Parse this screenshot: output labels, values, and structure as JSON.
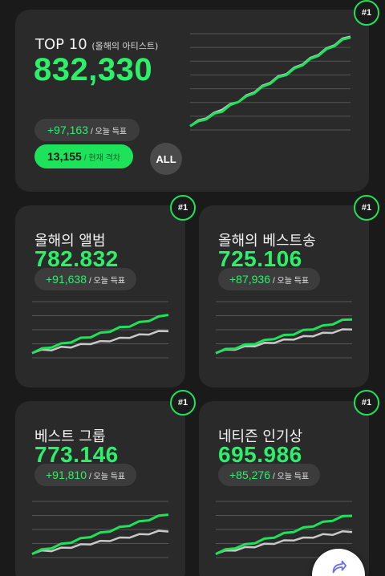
{
  "colors": {
    "accent": "#1ee35a",
    "number": "#2df06a",
    "card": "#2a2a2a",
    "background": "#1a1a1a",
    "secondary_line": "#c8c8c8"
  },
  "top10": {
    "title": "TOP 10",
    "subtitle": "(올해의 아티스트)",
    "count": "832,330",
    "today_votes": "+97,163",
    "today_label": "/ 오늘 득표",
    "gap_value": "13,155",
    "gap_label": "/ 현재 격차",
    "all_button": "ALL",
    "rank": "#1"
  },
  "cards": [
    {
      "title": "올해의 앨범",
      "count": "782.832",
      "today_votes": "+91,638",
      "today_label": "/ 오늘 득표",
      "rank": "#1"
    },
    {
      "title": "올해의 베스트송",
      "count": "725.106",
      "today_votes": "+87,936",
      "today_label": "/ 오늘 득표",
      "rank": "#1"
    },
    {
      "title": "베스트 그룹",
      "count": "773.146",
      "today_votes": "+91,810",
      "today_label": "/ 오늘 득표",
      "rank": "#1"
    },
    {
      "title": "네티즌 인기상",
      "count": "695.986",
      "today_votes": "+85,276",
      "today_label": "/ 오늘 득표",
      "rank": "#1"
    }
  ],
  "chart_data": [
    {
      "type": "line",
      "series": [
        {
          "values": [
            0.05,
            0.08,
            0.12,
            0.16,
            0.2,
            0.25,
            0.3,
            0.34,
            0.39,
            0.44,
            0.49,
            0.54,
            0.58,
            0.63,
            0.68,
            0.73,
            0.78,
            0.83,
            0.88,
            0.93,
            0.97
          ]
        },
        {
          "values": [
            0.05,
            0.09,
            0.13,
            0.17,
            0.22,
            0.26,
            0.3,
            0.35,
            0.4,
            0.45,
            0.5,
            0.55,
            0.59,
            0.64,
            0.69,
            0.74,
            0.79,
            0.84,
            0.89,
            0.94,
            0.98
          ]
        }
      ]
    },
    {
      "type": "line",
      "series": [
        {
          "values": [
            0.1,
            0.15,
            0.2,
            0.24,
            0.29,
            0.34,
            0.38,
            0.43,
            0.48,
            0.53,
            0.57,
            0.62,
            0.67,
            0.72,
            0.78
          ]
        },
        {
          "values": [
            0.1,
            0.13,
            0.15,
            0.18,
            0.2,
            0.23,
            0.26,
            0.28,
            0.31,
            0.34,
            0.37,
            0.4,
            0.43,
            0.46,
            0.49
          ]
        }
      ]
    },
    {
      "type": "line",
      "series": [
        {
          "values": [
            0.1,
            0.14,
            0.18,
            0.22,
            0.26,
            0.3,
            0.35,
            0.39,
            0.43,
            0.48,
            0.52,
            0.56,
            0.61,
            0.66,
            0.7
          ]
        },
        {
          "values": [
            0.1,
            0.13,
            0.16,
            0.19,
            0.22,
            0.25,
            0.28,
            0.31,
            0.34,
            0.37,
            0.4,
            0.43,
            0.46,
            0.49,
            0.52
          ]
        }
      ]
    },
    {
      "type": "line",
      "series": [
        {
          "values": [
            0.08,
            0.13,
            0.18,
            0.23,
            0.28,
            0.33,
            0.38,
            0.43,
            0.48,
            0.53,
            0.58,
            0.63,
            0.68,
            0.73,
            0.78
          ]
        },
        {
          "values": [
            0.08,
            0.11,
            0.13,
            0.16,
            0.19,
            0.22,
            0.25,
            0.28,
            0.31,
            0.34,
            0.37,
            0.4,
            0.43,
            0.46,
            0.48
          ]
        }
      ]
    },
    {
      "type": "line",
      "series": [
        {
          "values": [
            0.08,
            0.13,
            0.18,
            0.22,
            0.27,
            0.32,
            0.37,
            0.42,
            0.47,
            0.52,
            0.57,
            0.62,
            0.67,
            0.72,
            0.76
          ]
        },
        {
          "values": [
            0.08,
            0.11,
            0.14,
            0.17,
            0.2,
            0.23,
            0.26,
            0.29,
            0.32,
            0.34,
            0.37,
            0.4,
            0.42,
            0.45,
            0.47
          ]
        }
      ]
    }
  ],
  "fab_icon": "share-arrow-icon"
}
